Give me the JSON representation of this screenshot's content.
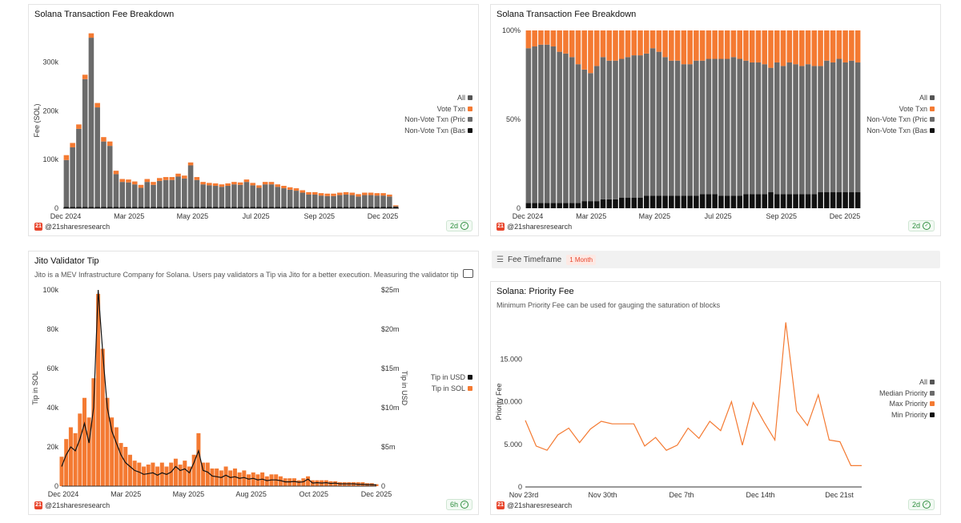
{
  "panels": {
    "p1": {
      "title": "Solana Transaction Fee Breakdown",
      "handle": "@21sharesresearch",
      "badge": "2d"
    },
    "p2": {
      "title": "Solana Transaction Fee Breakdown",
      "handle": "@21sharesresearch",
      "badge": "2d"
    },
    "p3": {
      "title": "Jito Validator Tip",
      "subtitle": "Jito is a MEV Infrastructure Company for Solana. Users pay validators a Tip via Jito for a better execution. Measuring the validator tip will be a",
      "handle": "@21sharesresearch",
      "badge": "6h"
    },
    "p4": {
      "title": "Solana: Priority Fee",
      "subtitle": "Minimum Priority Fee can be used for gauging the saturation of blocks",
      "handle": "@21sharesresearch",
      "badge": "2d"
    }
  },
  "logo_text": "21",
  "timeframe": {
    "label": "Fee Timeframe",
    "value": "1 Month"
  },
  "colors": {
    "orange": "#f47a32",
    "gray": "#6b6b6b",
    "black": "#111111",
    "allGray": "#555555"
  },
  "chart_data": [
    {
      "id": "fee_abs",
      "type": "bar",
      "title": "Solana Transaction Fee Breakdown",
      "ylabel": "Fee (SOL)",
      "ylim": [
        0,
        360000
      ],
      "yticks": [
        0,
        100000,
        200000,
        300000
      ],
      "ytick_labels": [
        "0",
        "100k",
        "200k",
        "300k"
      ],
      "xtick_labels": [
        "Dec 2024",
        "Mar 2025",
        "May 2025",
        "Jul 2025",
        "Sep 2025",
        "Dec 2025"
      ],
      "legend": [
        "All",
        "Vote Txn",
        "Non-Vote Txn (Pric",
        "Non-Vote Txn (Bas"
      ],
      "series": [
        {
          "name": "Non-Vote Txn (Base)",
          "values": [
            3000,
            3000,
            3000,
            3000,
            3000,
            3000,
            3000,
            3000,
            3000,
            3000,
            3000,
            3000,
            3000,
            3000,
            3000,
            3000,
            3000,
            3000,
            3000,
            3000,
            3000,
            3000,
            3000,
            3000,
            3000,
            3000,
            3000,
            3000,
            3000,
            3000,
            3000,
            3000,
            3000,
            3000,
            3000,
            3000,
            3000,
            3000,
            3000,
            3000,
            3000,
            3000,
            3000,
            3000,
            3000,
            3000,
            3000,
            3000,
            3000,
            3000,
            3000,
            3000,
            3000,
            3000
          ]
        },
        {
          "name": "Non-Vote Txn (Priority)",
          "values": [
            96000,
            122000,
            160000,
            262000,
            347000,
            204000,
            134000,
            125000,
            67000,
            51000,
            50000,
            46000,
            39000,
            51000,
            45000,
            53000,
            55000,
            55000,
            62000,
            58000,
            85000,
            55000,
            46000,
            44000,
            43000,
            41000,
            43000,
            46000,
            45000,
            51000,
            44000,
            39000,
            46000,
            46000,
            41000,
            38000,
            35000,
            33000,
            29000,
            25000,
            25000,
            23000,
            22000,
            22000,
            24000,
            25000,
            24000,
            21000,
            24000,
            24000,
            23000,
            23000,
            21000,
            1000
          ]
        },
        {
          "name": "Vote Txn",
          "values": [
            10000,
            9000,
            9000,
            9000,
            9000,
            9000,
            9000,
            9000,
            7000,
            6000,
            6000,
            6000,
            6000,
            6000,
            6000,
            6000,
            6000,
            6000,
            6000,
            6000,
            6000,
            6000,
            5000,
            5000,
            5000,
            5000,
            5000,
            5000,
            5000,
            5000,
            5000,
            5000,
            5000,
            5000,
            5000,
            5000,
            5000,
            5000,
            5000,
            5000,
            5000,
            5000,
            5000,
            5000,
            5000,
            5000,
            5000,
            5000,
            5000,
            5000,
            5000,
            5000,
            4000,
            2000
          ]
        }
      ]
    },
    {
      "id": "fee_pct",
      "type": "bar",
      "title": "Solana Transaction Fee Breakdown",
      "ylim": [
        0,
        100
      ],
      "yticks": [
        0,
        50,
        100
      ],
      "ytick_labels": [
        "0",
        "50%",
        "100%"
      ],
      "xtick_labels": [
        "Dec 2024",
        "Mar 2025",
        "May 2025",
        "Jul 2025",
        "Sep 2025",
        "Dec 2025"
      ],
      "legend": [
        "All",
        "Vote Txn",
        "Non-Vote Txn (Pric",
        "Non-Vote Txn (Bas"
      ],
      "series": [
        {
          "name": "Non-Vote Txn (Base)",
          "values": [
            3,
            3,
            3,
            3,
            3,
            3,
            3,
            3,
            3,
            4,
            4,
            4,
            5,
            5,
            5,
            6,
            6,
            6,
            6,
            7,
            7,
            7,
            7,
            7,
            7,
            7,
            7,
            7,
            8,
            8,
            8,
            7,
            7,
            7,
            7,
            8,
            8,
            8,
            8,
            9,
            8,
            8,
            8,
            8,
            8,
            8,
            8,
            9,
            9,
            9,
            9,
            9,
            9,
            9
          ]
        },
        {
          "name": "Non-Vote Txn (Priority)",
          "values": [
            87,
            88,
            89,
            89,
            88,
            85,
            84,
            82,
            78,
            74,
            72,
            76,
            80,
            78,
            78,
            78,
            79,
            80,
            80,
            80,
            83,
            81,
            78,
            76,
            76,
            74,
            74,
            76,
            75,
            76,
            76,
            77,
            77,
            78,
            77,
            75,
            74,
            74,
            73,
            70,
            74,
            72,
            74,
            73,
            72,
            73,
            72,
            71,
            74,
            73,
            75,
            73,
            74,
            73
          ]
        },
        {
          "name": "Vote Txn",
          "values": [
            10,
            9,
            8,
            8,
            9,
            12,
            13,
            15,
            19,
            22,
            24,
            20,
            15,
            17,
            17,
            16,
            15,
            14,
            14,
            13,
            10,
            12,
            15,
            17,
            17,
            19,
            19,
            17,
            17,
            16,
            16,
            16,
            16,
            15,
            16,
            17,
            18,
            18,
            19,
            21,
            18,
            20,
            18,
            19,
            20,
            19,
            20,
            20,
            17,
            18,
            16,
            18,
            17,
            18
          ]
        }
      ]
    },
    {
      "id": "jito",
      "type": "area",
      "title": "Jito Validator Tip",
      "ylabel": "Tip in SOL",
      "y2label": "Tip in USD",
      "ylim": [
        0,
        100000
      ],
      "y2lim": [
        0,
        25000000
      ],
      "yticks": [
        0,
        20000,
        40000,
        60000,
        80000,
        100000
      ],
      "ytick_labels": [
        "0",
        "20k",
        "40k",
        "60k",
        "80k",
        "100k"
      ],
      "y2ticks": [
        0,
        5000000,
        10000000,
        15000000,
        20000000,
        25000000
      ],
      "y2tick_labels": [
        "0",
        "$5m",
        "$10m",
        "$15m",
        "$20m",
        "$25m"
      ],
      "xtick_labels": [
        "Dec 2024",
        "Mar 2025",
        "May 2025",
        "Aug 2025",
        "Oct 2025",
        "Dec 2025"
      ],
      "legend": [
        "Tip in USD",
        "Tip in SOL"
      ],
      "series": [
        {
          "name": "Tip in SOL",
          "values": [
            15000,
            24000,
            30000,
            27000,
            37000,
            45000,
            35000,
            55000,
            98000,
            70000,
            45000,
            35000,
            30000,
            22000,
            20000,
            16000,
            13000,
            12000,
            10000,
            11000,
            12000,
            10000,
            12000,
            10000,
            12000,
            14000,
            11000,
            13000,
            10000,
            16000,
            27000,
            12000,
            12000,
            9000,
            9000,
            8000,
            10000,
            8000,
            9000,
            7000,
            8000,
            6000,
            7000,
            6000,
            7000,
            5000,
            6000,
            6000,
            5000,
            4000,
            4000,
            4000,
            3000,
            4000,
            5000,
            3000,
            3000,
            3000,
            3000,
            2500,
            2500,
            2000,
            2000,
            2000,
            2000,
            2000,
            2000,
            1500,
            1500,
            1000
          ]
        },
        {
          "name": "Tip in USD",
          "values": [
            2500000,
            4000000,
            5000000,
            4500000,
            6000000,
            8000000,
            5500000,
            10000000,
            25000000,
            17000000,
            10000000,
            7000000,
            5500000,
            4000000,
            3000000,
            2500000,
            2000000,
            1800000,
            1500000,
            1600000,
            1700000,
            1400000,
            1700000,
            1500000,
            1800000,
            2500000,
            2000000,
            2200000,
            1700000,
            3000000,
            4500000,
            2000000,
            1800000,
            1300000,
            1200000,
            1100000,
            1400000,
            1100000,
            1200000,
            1000000,
            1100000,
            900000,
            1000000,
            800000,
            900000,
            700000,
            800000,
            800000,
            700000,
            550000,
            550000,
            600000,
            500000,
            550000,
            900000,
            400000,
            450000,
            400000,
            450000,
            350000,
            400000,
            300000,
            300000,
            300000,
            300000,
            250000,
            250000,
            200000,
            200000,
            150000
          ]
        }
      ]
    },
    {
      "id": "priority",
      "type": "line",
      "title": "Solana: Priority Fee",
      "ylabel": "Priority Fee",
      "ylim": [
        0,
        20000
      ],
      "yticks": [
        0,
        5000,
        10000,
        15000
      ],
      "ytick_labels": [
        "0",
        "5.000",
        "10.000",
        "15.000"
      ],
      "xtick_labels": [
        "Nov 23rd",
        "Nov 30th",
        "Dec 7th",
        "Dec 14th",
        "Dec 21st"
      ],
      "legend": [
        "All",
        "Median Priority",
        "Max Priority",
        "Min Priority"
      ],
      "series": [
        {
          "name": "Max Priority",
          "x": [
            0,
            1,
            2,
            3,
            4,
            5,
            6,
            7,
            8,
            9,
            10,
            11,
            12,
            13,
            14,
            15,
            16,
            17,
            18,
            19,
            20,
            21,
            22,
            23,
            24,
            25,
            26,
            27,
            28,
            29,
            30,
            31
          ],
          "values": [
            7800,
            4800,
            4300,
            6100,
            6900,
            5200,
            6800,
            7700,
            7400,
            7400,
            7400,
            4800,
            5800,
            4300,
            4900,
            6900,
            5700,
            7700,
            6600,
            10000,
            4900,
            9900,
            7600,
            5500,
            19300,
            8900,
            7200,
            10800,
            5500,
            5300,
            2500,
            2500
          ]
        }
      ]
    }
  ]
}
